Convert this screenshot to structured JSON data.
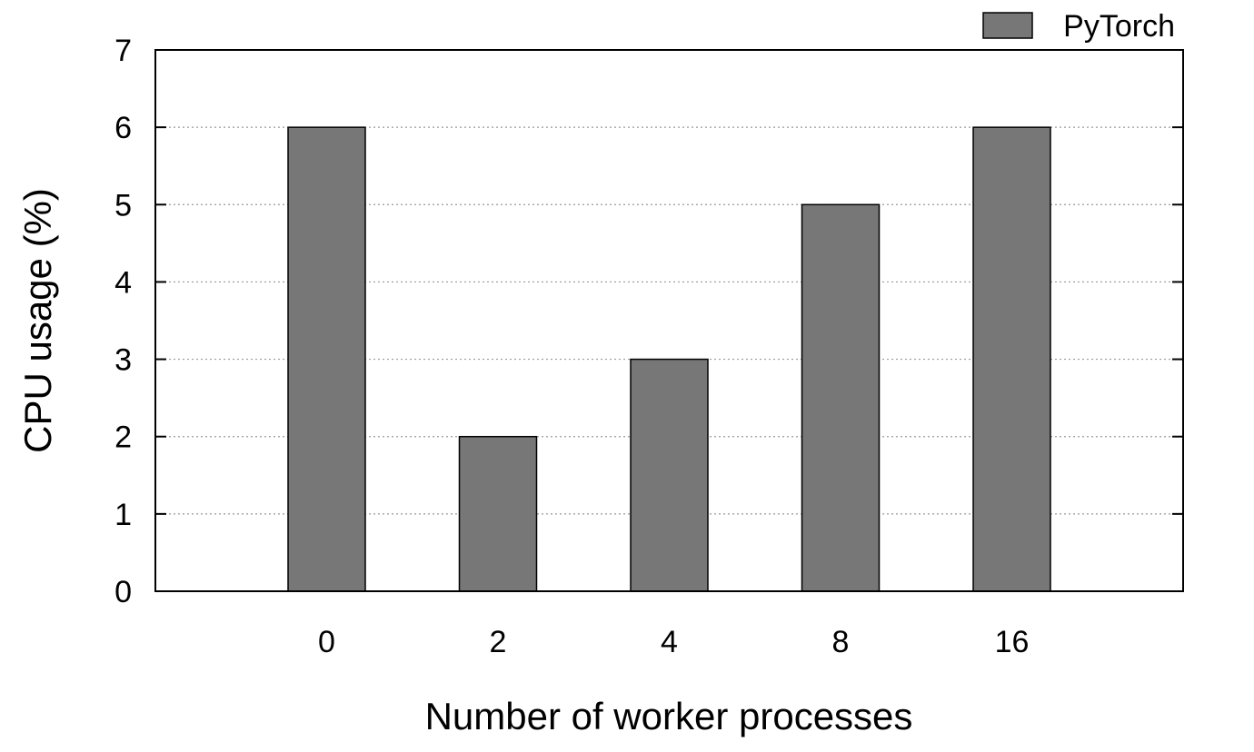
{
  "chart_data": {
    "type": "bar",
    "title": "",
    "xlabel": "Number of worker processes",
    "ylabel": "CPU usage (%)",
    "categories": [
      "0",
      "2",
      "4",
      "8",
      "16"
    ],
    "series": [
      {
        "name": "PyTorch",
        "values": [
          6,
          2,
          3,
          5,
          6
        ],
        "color": "#777777"
      }
    ],
    "ylim": [
      0,
      7
    ],
    "yticks": [
      "0",
      "1",
      "2",
      "3",
      "4",
      "5",
      "6",
      "7"
    ],
    "grid": "horizontal-dotted",
    "legend_position": "top-right"
  }
}
